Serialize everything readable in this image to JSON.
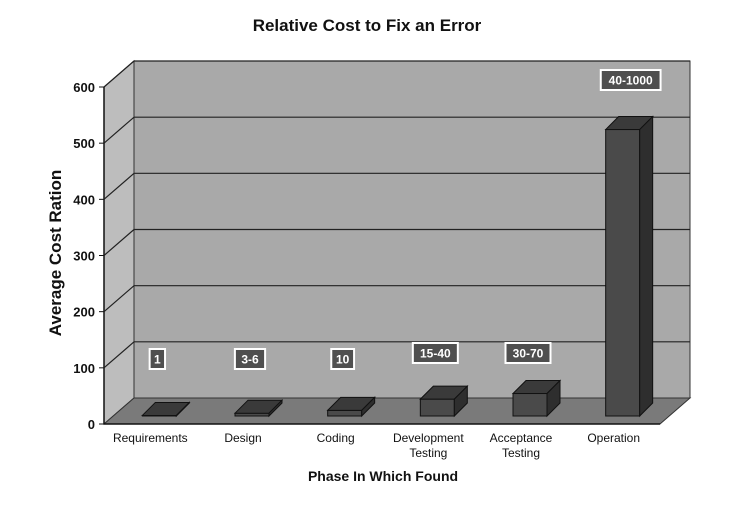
{
  "chart_data": {
    "type": "bar",
    "title": "Relative Cost to Fix an Error",
    "xlabel": "Phase In Which Found",
    "ylabel": "Average Cost Ration",
    "ylim": [
      0,
      600
    ],
    "yticks": [
      "0",
      "100",
      "200",
      "300",
      "400",
      "500",
      "600"
    ],
    "grid": true,
    "categories": [
      [
        "Requirements"
      ],
      [
        "Design"
      ],
      [
        "Coding"
      ],
      [
        "Development",
        "Testing"
      ],
      [
        "Acceptance",
        "Testing"
      ],
      [
        "Operation"
      ]
    ],
    "values": [
      1,
      5,
      10,
      30,
      40,
      510
    ],
    "data_labels": [
      "1",
      "3-6",
      "10",
      "15-40",
      "30-70",
      "40-1000"
    ],
    "colors": {
      "bar_front": "#4a4a4a",
      "bar_top": "#3a3a3a",
      "bar_side": "#2e2e2e",
      "back_wall": "#a9a9a9",
      "side_wall": "#bdbdbd",
      "floor": "#7a7a7a",
      "label_box": "#4f4f4f"
    }
  }
}
